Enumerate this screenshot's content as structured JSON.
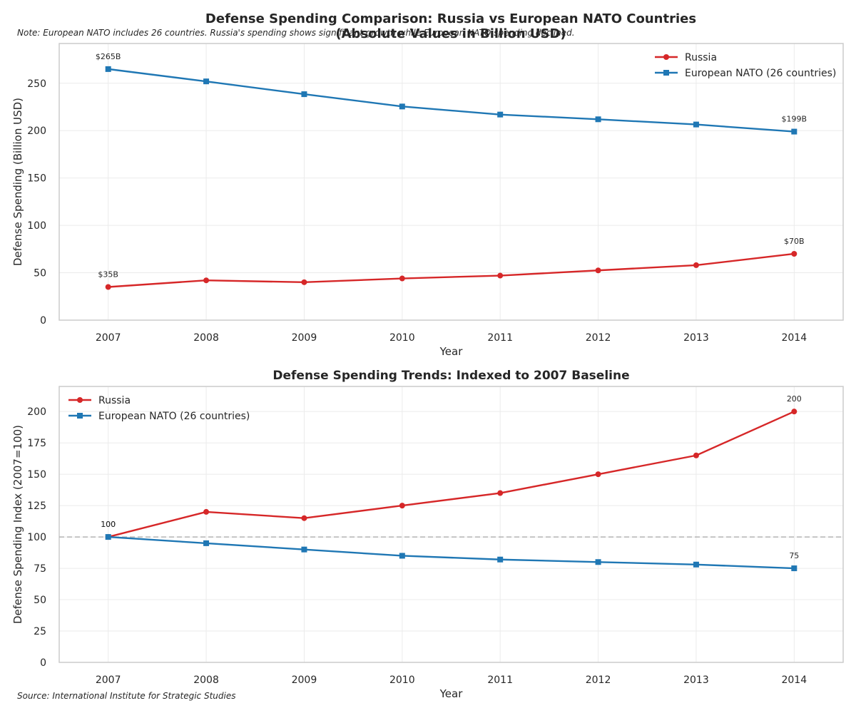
{
  "header": {
    "title_line1": "Defense Spending Comparison: Russia vs European NATO Countries",
    "title_line2": "(Absolute Values in Billion USD)",
    "note": "Note: European NATO includes 26 countries. Russia's spending shows significant growth while European NATO spending declined."
  },
  "footer": {
    "source": "Source: International Institute for Strategic Studies"
  },
  "colors": {
    "russia": "#d62728",
    "nato": "#1f77b4",
    "grid": "#ebebeb",
    "axis_frame": "#cccccc",
    "baseline": "#b3b3b3",
    "text": "#262626"
  },
  "chart_data": [
    {
      "type": "line",
      "title": "",
      "xlabel": "Year",
      "ylabel": "Defense Spending (Billion USD)",
      "x": [
        2007,
        2008,
        2009,
        2010,
        2011,
        2012,
        2013,
        2014
      ],
      "xlim": [
        2006.5,
        2014.5
      ],
      "ylim": [
        0,
        292
      ],
      "yticks": [
        0,
        50,
        100,
        150,
        200,
        250
      ],
      "grid": true,
      "legend_position": "upper right",
      "series": [
        {
          "name": "Russia",
          "color": "#d62728",
          "marker": "circle",
          "values": [
            35,
            42,
            40,
            44,
            47,
            52.5,
            58,
            70
          ],
          "annotations": [
            {
              "x": 2007,
              "text": "$35B"
            },
            {
              "x": 2014,
              "text": "$70B"
            }
          ]
        },
        {
          "name": "European NATO (26 countries)",
          "color": "#1f77b4",
          "marker": "square",
          "values": [
            265,
            252,
            238.5,
            225.5,
            217,
            212,
            206.5,
            199
          ],
          "annotations": [
            {
              "x": 2007,
              "text": "$265B"
            },
            {
              "x": 2014,
              "text": "$199B"
            }
          ]
        }
      ]
    },
    {
      "type": "line",
      "title": "Defense Spending Trends: Indexed to 2007 Baseline",
      "xlabel": "Year",
      "ylabel": "Defense Spending Index (2007=100)",
      "x": [
        2007,
        2008,
        2009,
        2010,
        2011,
        2012,
        2013,
        2014
      ],
      "xlim": [
        2006.5,
        2014.5
      ],
      "ylim": [
        0,
        220
      ],
      "yticks": [
        0,
        25,
        50,
        75,
        100,
        125,
        150,
        175,
        200
      ],
      "grid": true,
      "legend_position": "upper left",
      "reference_line": {
        "y": 100,
        "style": "dashed"
      },
      "series": [
        {
          "name": "Russia",
          "color": "#d62728",
          "marker": "circle",
          "values": [
            100,
            120,
            115,
            125,
            135,
            150,
            165,
            200
          ],
          "annotations": [
            {
              "x": 2007,
              "text": "100"
            },
            {
              "x": 2014,
              "text": "200"
            }
          ]
        },
        {
          "name": "European NATO (26 countries)",
          "color": "#1f77b4",
          "marker": "square",
          "values": [
            100,
            95,
            90,
            85,
            82,
            80,
            78,
            75
          ],
          "annotations": [
            {
              "x": 2007,
              "text": "100"
            },
            {
              "x": 2014,
              "text": "75"
            }
          ]
        }
      ]
    }
  ]
}
